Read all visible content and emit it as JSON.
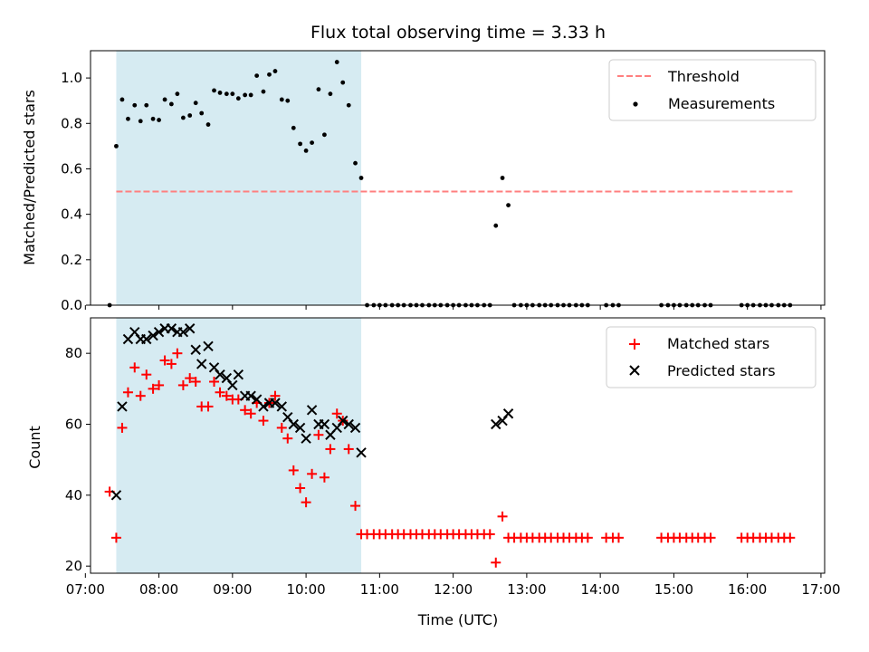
{
  "figure": {
    "title": "Flux total observing time = 3.33 h"
  },
  "chart_data": [
    {
      "type": "scatter",
      "panel": "top",
      "ylabel": "Matched/Predicted stars",
      "ylim": [
        0,
        1.12
      ],
      "xlim": [
        7.07,
        17.05
      ],
      "yticks": [
        0.0,
        0.2,
        0.4,
        0.6,
        0.8,
        1.0
      ],
      "ytick_labels": [
        "0.0",
        "0.2",
        "0.4",
        "0.6",
        "0.8",
        "1.0"
      ],
      "shaded_span": [
        7.42,
        10.75
      ],
      "shade_color": "#add8e6",
      "legend_position": "top-right",
      "threshold": {
        "name": "Threshold",
        "value": 0.5,
        "x_range": [
          7.42,
          16.62
        ],
        "color": "#ff7f7f",
        "style": "dashed"
      },
      "series": [
        {
          "name": "Measurements",
          "marker": "dot",
          "color": "#000000",
          "points": [
            [
              7.33,
              0.0
            ],
            [
              7.42,
              0.7
            ],
            [
              7.5,
              0.905
            ],
            [
              7.58,
              0.82
            ],
            [
              7.67,
              0.88
            ],
            [
              7.75,
              0.81
            ],
            [
              7.83,
              0.88
            ],
            [
              7.92,
              0.82
            ],
            [
              8.0,
              0.815
            ],
            [
              8.08,
              0.905
            ],
            [
              8.17,
              0.885
            ],
            [
              8.25,
              0.93
            ],
            [
              8.33,
              0.825
            ],
            [
              8.42,
              0.835
            ],
            [
              8.5,
              0.89
            ],
            [
              8.58,
              0.845
            ],
            [
              8.67,
              0.795
            ],
            [
              8.75,
              0.945
            ],
            [
              8.83,
              0.935
            ],
            [
              8.92,
              0.93
            ],
            [
              9.0,
              0.93
            ],
            [
              9.08,
              0.91
            ],
            [
              9.17,
              0.925
            ],
            [
              9.25,
              0.925
            ],
            [
              9.33,
              1.01
            ],
            [
              9.42,
              0.94
            ],
            [
              9.5,
              1.015
            ],
            [
              9.58,
              1.03
            ],
            [
              9.67,
              0.905
            ],
            [
              9.75,
              0.9
            ],
            [
              9.83,
              0.78
            ],
            [
              9.92,
              0.71
            ],
            [
              10.0,
              0.68
            ],
            [
              10.08,
              0.715
            ],
            [
              10.17,
              0.95
            ],
            [
              10.25,
              0.75
            ],
            [
              10.33,
              0.93
            ],
            [
              10.42,
              1.07
            ],
            [
              10.5,
              0.98
            ],
            [
              10.58,
              0.88
            ],
            [
              10.67,
              0.625
            ],
            [
              10.75,
              0.56
            ],
            [
              10.83,
              0
            ],
            [
              10.92,
              0
            ],
            [
              11.0,
              0
            ],
            [
              11.08,
              0
            ],
            [
              11.17,
              0
            ],
            [
              11.25,
              0
            ],
            [
              11.33,
              0
            ],
            [
              11.42,
              0
            ],
            [
              11.5,
              0
            ],
            [
              11.58,
              0
            ],
            [
              11.67,
              0
            ],
            [
              11.75,
              0
            ],
            [
              11.83,
              0
            ],
            [
              11.92,
              0
            ],
            [
              12.0,
              0
            ],
            [
              12.08,
              0
            ],
            [
              12.17,
              0
            ],
            [
              12.25,
              0
            ],
            [
              12.33,
              0
            ],
            [
              12.42,
              0
            ],
            [
              12.5,
              0
            ],
            [
              12.58,
              0.35
            ],
            [
              12.67,
              0.56
            ],
            [
              12.75,
              0.44
            ],
            [
              12.83,
              0
            ],
            [
              12.92,
              0
            ],
            [
              13.0,
              0
            ],
            [
              13.08,
              0
            ],
            [
              13.17,
              0
            ],
            [
              13.25,
              0
            ],
            [
              13.33,
              0
            ],
            [
              13.42,
              0
            ],
            [
              13.5,
              0
            ],
            [
              13.58,
              0
            ],
            [
              13.67,
              0
            ],
            [
              13.75,
              0
            ],
            [
              13.83,
              0
            ],
            [
              14.08,
              0
            ],
            [
              14.17,
              0
            ],
            [
              14.25,
              0
            ],
            [
              14.83,
              0
            ],
            [
              14.92,
              0
            ],
            [
              15.0,
              0
            ],
            [
              15.08,
              0
            ],
            [
              15.17,
              0
            ],
            [
              15.25,
              0
            ],
            [
              15.33,
              0
            ],
            [
              15.42,
              0
            ],
            [
              15.5,
              0
            ],
            [
              15.92,
              0
            ],
            [
              16.0,
              0
            ],
            [
              16.08,
              0
            ],
            [
              16.17,
              0
            ],
            [
              16.25,
              0
            ],
            [
              16.33,
              0
            ],
            [
              16.42,
              0
            ],
            [
              16.5,
              0
            ],
            [
              16.58,
              0
            ]
          ]
        }
      ]
    },
    {
      "type": "scatter",
      "panel": "bottom",
      "ylabel": "Count",
      "xlabel": "Time (UTC)",
      "ylim": [
        18,
        90
      ],
      "xlim": [
        7.07,
        17.05
      ],
      "yticks": [
        20,
        40,
        60,
        80
      ],
      "ytick_labels": [
        "20",
        "40",
        "60",
        "80"
      ],
      "xticks": [
        7,
        8,
        9,
        10,
        11,
        12,
        13,
        14,
        15,
        16,
        17
      ],
      "xtick_labels": [
        "07:00",
        "08:00",
        "09:00",
        "10:00",
        "11:00",
        "12:00",
        "13:00",
        "14:00",
        "15:00",
        "16:00",
        "17:00"
      ],
      "shaded_span": [
        7.42,
        10.75
      ],
      "shade_color": "#add8e6",
      "legend_position": "top-right",
      "series": [
        {
          "name": "Matched stars",
          "marker": "plus",
          "color": "#ff0000",
          "points": [
            [
              7.33,
              41
            ],
            [
              7.42,
              28
            ],
            [
              7.5,
              59
            ],
            [
              7.58,
              69
            ],
            [
              7.67,
              76
            ],
            [
              7.75,
              68
            ],
            [
              7.83,
              74
            ],
            [
              7.92,
              70
            ],
            [
              8.0,
              71
            ],
            [
              8.08,
              78
            ],
            [
              8.17,
              77
            ],
            [
              8.25,
              80
            ],
            [
              8.33,
              71
            ],
            [
              8.42,
              73
            ],
            [
              8.5,
              72
            ],
            [
              8.58,
              65
            ],
            [
              8.67,
              65
            ],
            [
              8.75,
              72
            ],
            [
              8.83,
              69
            ],
            [
              8.92,
              68
            ],
            [
              9.0,
              67
            ],
            [
              9.08,
              67
            ],
            [
              9.17,
              64
            ],
            [
              9.25,
              63
            ],
            [
              9.33,
              66
            ],
            [
              9.42,
              61
            ],
            [
              9.5,
              66
            ],
            [
              9.58,
              68
            ],
            [
              9.67,
              59
            ],
            [
              9.75,
              56
            ],
            [
              9.83,
              47
            ],
            [
              9.92,
              42
            ],
            [
              10.0,
              38
            ],
            [
              10.08,
              46
            ],
            [
              10.17,
              57
            ],
            [
              10.25,
              45
            ],
            [
              10.33,
              53
            ],
            [
              10.42,
              63
            ],
            [
              10.5,
              61
            ],
            [
              10.58,
              53
            ],
            [
              10.67,
              37
            ],
            [
              10.75,
              29
            ],
            [
              10.83,
              29
            ],
            [
              10.92,
              29
            ],
            [
              11.0,
              29
            ],
            [
              11.08,
              29
            ],
            [
              11.17,
              29
            ],
            [
              11.25,
              29
            ],
            [
              11.33,
              29
            ],
            [
              11.42,
              29
            ],
            [
              11.5,
              29
            ],
            [
              11.58,
              29
            ],
            [
              11.67,
              29
            ],
            [
              11.75,
              29
            ],
            [
              11.83,
              29
            ],
            [
              11.92,
              29
            ],
            [
              12.0,
              29
            ],
            [
              12.08,
              29
            ],
            [
              12.17,
              29
            ],
            [
              12.25,
              29
            ],
            [
              12.33,
              29
            ],
            [
              12.42,
              29
            ],
            [
              12.5,
              29
            ],
            [
              12.58,
              21
            ],
            [
              12.67,
              34
            ],
            [
              12.75,
              28
            ],
            [
              12.83,
              28
            ],
            [
              12.92,
              28
            ],
            [
              13.0,
              28
            ],
            [
              13.08,
              28
            ],
            [
              13.17,
              28
            ],
            [
              13.25,
              28
            ],
            [
              13.33,
              28
            ],
            [
              13.42,
              28
            ],
            [
              13.5,
              28
            ],
            [
              13.58,
              28
            ],
            [
              13.67,
              28
            ],
            [
              13.75,
              28
            ],
            [
              13.83,
              28
            ],
            [
              14.08,
              28
            ],
            [
              14.17,
              28
            ],
            [
              14.25,
              28
            ],
            [
              14.83,
              28
            ],
            [
              14.92,
              28
            ],
            [
              15.0,
              28
            ],
            [
              15.08,
              28
            ],
            [
              15.17,
              28
            ],
            [
              15.25,
              28
            ],
            [
              15.33,
              28
            ],
            [
              15.42,
              28
            ],
            [
              15.5,
              28
            ],
            [
              15.92,
              28
            ],
            [
              16.0,
              28
            ],
            [
              16.08,
              28
            ],
            [
              16.17,
              28
            ],
            [
              16.25,
              28
            ],
            [
              16.33,
              28
            ],
            [
              16.42,
              28
            ],
            [
              16.5,
              28
            ],
            [
              16.58,
              28
            ]
          ]
        },
        {
          "name": "Predicted stars",
          "marker": "x",
          "color": "#000000",
          "points": [
            [
              7.42,
              40
            ],
            [
              7.5,
              65
            ],
            [
              7.58,
              84
            ],
            [
              7.67,
              86
            ],
            [
              7.75,
              84
            ],
            [
              7.83,
              84
            ],
            [
              7.92,
              85
            ],
            [
              8.0,
              86
            ],
            [
              8.08,
              87
            ],
            [
              8.17,
              87
            ],
            [
              8.25,
              86
            ],
            [
              8.33,
              86
            ],
            [
              8.42,
              87
            ],
            [
              8.5,
              81
            ],
            [
              8.58,
              77
            ],
            [
              8.67,
              82
            ],
            [
              8.75,
              76
            ],
            [
              8.83,
              74
            ],
            [
              8.92,
              73
            ],
            [
              9.0,
              71
            ],
            [
              9.08,
              74
            ],
            [
              9.17,
              68
            ],
            [
              9.25,
              68
            ],
            [
              9.33,
              67
            ],
            [
              9.42,
              65
            ],
            [
              9.5,
              66
            ],
            [
              9.58,
              66
            ],
            [
              9.67,
              65
            ],
            [
              9.75,
              62
            ],
            [
              9.83,
              60
            ],
            [
              9.92,
              59
            ],
            [
              10.0,
              56
            ],
            [
              10.08,
              64
            ],
            [
              10.17,
              60
            ],
            [
              10.25,
              60
            ],
            [
              10.33,
              57
            ],
            [
              10.42,
              59
            ],
            [
              10.5,
              61
            ],
            [
              10.58,
              60
            ],
            [
              10.67,
              59
            ],
            [
              10.75,
              52
            ],
            [
              12.58,
              60
            ],
            [
              12.67,
              61
            ],
            [
              12.75,
              63
            ]
          ]
        }
      ]
    }
  ]
}
